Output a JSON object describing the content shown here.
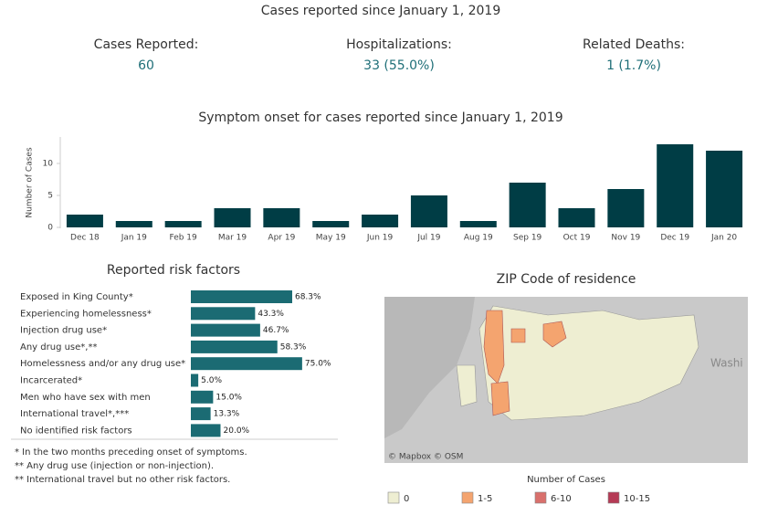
{
  "header": {
    "title": "Cases reported since January 1, 2019",
    "stats": [
      {
        "label": "Cases Reported:",
        "value": "60"
      },
      {
        "label": "Hospitalizations:",
        "value": "33 (55.0%)"
      },
      {
        "label": "Related Deaths:",
        "value": "1 (1.7%)"
      }
    ]
  },
  "chart_data": [
    {
      "type": "bar",
      "title": "Symptom onset for cases reported since January 1, 2019",
      "y_label": "Number of Cases",
      "categories": [
        "Dec 18",
        "Jan 19",
        "Feb 19",
        "Mar 19",
        "Apr 19",
        "May 19",
        "Jun 19",
        "Jul 19",
        "Aug 19",
        "Sep 19",
        "Oct 19",
        "Nov 19",
        "Dec 19",
        "Jan 20"
      ],
      "values": [
        2,
        1,
        1,
        3,
        3,
        1,
        2,
        5,
        1,
        7,
        3,
        6,
        13,
        12
      ],
      "color": "#003d45",
      "ylim": [
        0,
        14
      ],
      "yticks": [
        0,
        5,
        10
      ]
    },
    {
      "type": "hbar",
      "title": "Reported risk factors",
      "categories": [
        "Exposed in King County*",
        "Experiencing homelessness*",
        "Injection drug use*",
        "Any drug use*,**",
        "Homelessness and/or any drug use*",
        "Incarcerated*",
        "Men who have sex with men",
        "International travel*,***",
        "No identified risk factors"
      ],
      "values": [
        68.3,
        43.3,
        46.7,
        58.3,
        75.0,
        5.0,
        15.0,
        13.3,
        20.0
      ],
      "value_labels": [
        "68.3%",
        "43.3%",
        "46.7%",
        "58.3%",
        "75.0%",
        "5.0%",
        "15.0%",
        "13.3%",
        "20.0%"
      ],
      "color": "#1b6b73"
    }
  ],
  "footnotes": [
    "* In the two months preceding onset of symptoms.",
    "** Any drug use (injection or non-injection).",
    "** International travel but no other risk factors."
  ],
  "map": {
    "title": "ZIP Code of residence",
    "attribution": "© Mapbox © OSM",
    "place_label": "Washi",
    "legend_title": "Number of Cases",
    "legend": [
      {
        "label": "0",
        "color": "#eeeed2"
      },
      {
        "label": "1-5",
        "color": "#f4a46f"
      },
      {
        "label": "6-10",
        "color": "#d9706c"
      },
      {
        "label": "10-15",
        "color": "#b53a55"
      }
    ]
  }
}
